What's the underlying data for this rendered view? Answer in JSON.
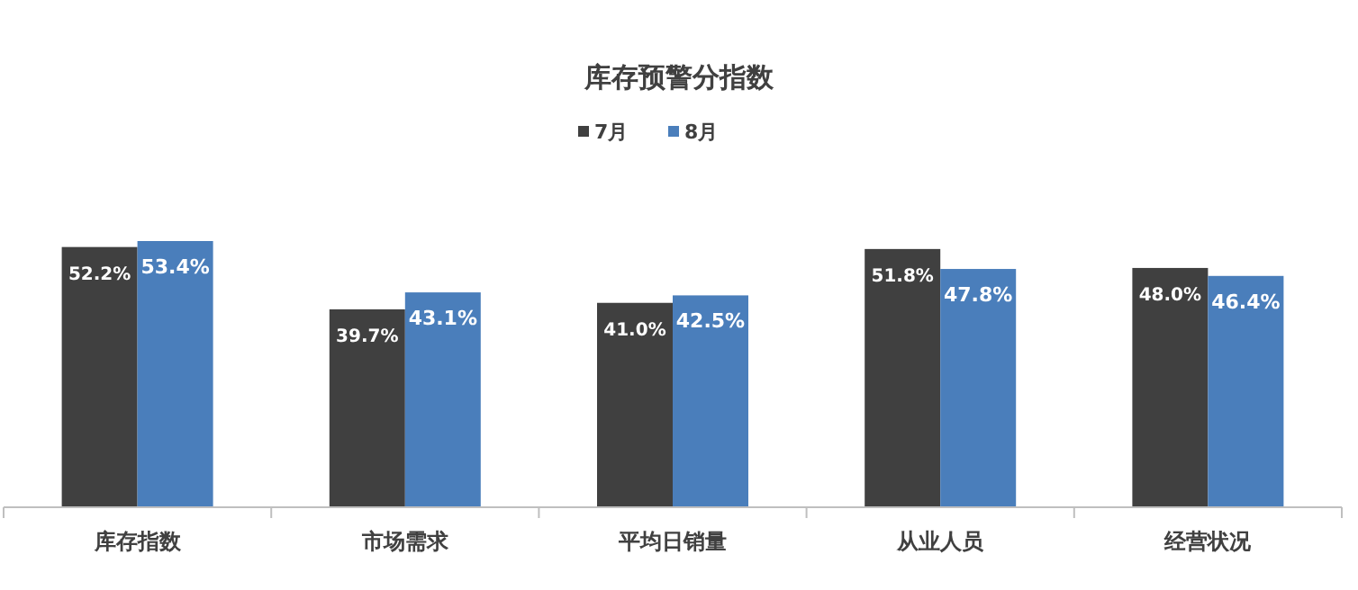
{
  "chart_data": {
    "type": "bar",
    "title": "库存预警分指数",
    "categories": [
      "库存指数",
      "市场需求",
      "平均日销量",
      "从业人员",
      "经营状况"
    ],
    "series": [
      {
        "name": "7月",
        "color": "#404040",
        "values": [
          52.2,
          39.7,
          41.0,
          51.8,
          48.0
        ],
        "value_labels": [
          "52.2%",
          "39.7%",
          "41.0%",
          "51.8%",
          "48.0%"
        ]
      },
      {
        "name": "8月",
        "color": "#4a7ebb",
        "values": [
          53.4,
          43.1,
          42.5,
          47.8,
          46.4
        ],
        "value_labels": [
          "53.4%",
          "43.1%",
          "42.5%",
          "47.8%",
          "46.4%"
        ]
      }
    ],
    "legend": "top"
  }
}
